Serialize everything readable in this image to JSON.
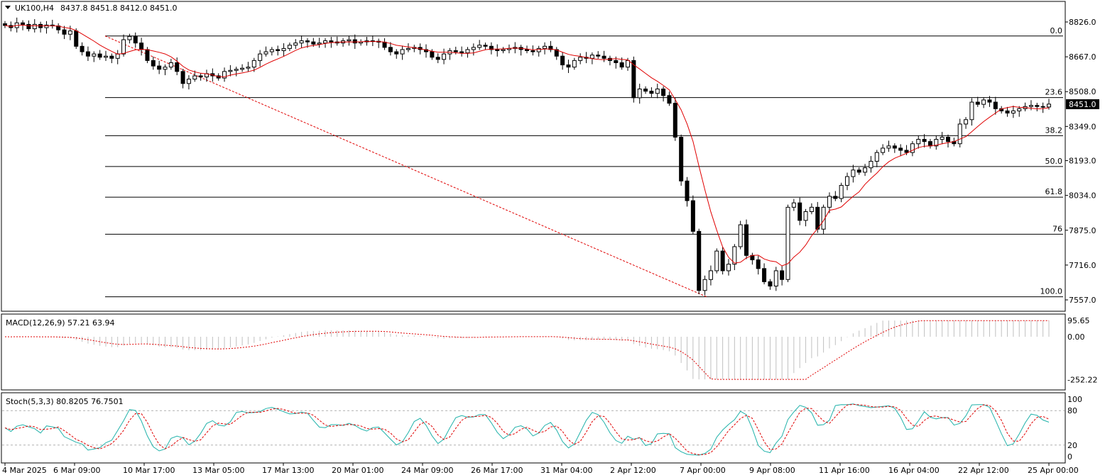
{
  "header": {
    "symbol": "UK100,H4",
    "ohlc": "8437.8 8451.8 8412.0 8451.0"
  },
  "price_axis": {
    "ticks": [
      8826.0,
      8667.0,
      8508.0,
      8349.0,
      8193.0,
      8034.0,
      7875.0,
      7716.0,
      7557.0
    ],
    "tick_labels": [
      "8826.0",
      "8667.0",
      "8508.0",
      "8349.0",
      "8193.0",
      "8034.0",
      "7875.0",
      "7716.0",
      "7557.0"
    ],
    "current_price_label": "8451.0",
    "range": [
      7521,
      8888
    ]
  },
  "time_axis": {
    "labels": [
      "4 Mar 2025",
      "6 Mar 09:00",
      "10 Mar 17:00",
      "13 Mar 05:00",
      "17 Mar 13:00",
      "20 Mar 01:00",
      "24 Mar 09:00",
      "26 Mar 17:00",
      "31 Mar 04:00",
      "2 Apr 12:00",
      "7 Apr 00:00",
      "9 Apr 08:00",
      "11 Apr 16:00",
      "16 Apr 04:00",
      "22 Apr 12:00",
      "25 Apr 00:00"
    ]
  },
  "fibonacci": {
    "levels": [
      {
        "label": "0.0",
        "price": 8762
      },
      {
        "label": "23.6",
        "price": 8481
      },
      {
        "label": "38.2",
        "price": 8307
      },
      {
        "label": "50.0",
        "price": 8166
      },
      {
        "label": "61.8",
        "price": 8026
      },
      {
        "label": "76",
        "price": 7857
      },
      {
        "label": "100.0",
        "price": 7571
      }
    ]
  },
  "macd_panel": {
    "label": "MACD(12,26,9) 57.21 63.94",
    "tick_labels": [
      "95.65",
      "0.00",
      "-252.22"
    ],
    "range": [
      -252.22,
      95.65
    ]
  },
  "stoch_panel": {
    "label": "Stoch(5,3,3) 80.8205 76.7501",
    "tick_labels": [
      "100",
      "80",
      "20",
      "0"
    ]
  },
  "colors": {
    "up_candle": "#ffffff",
    "down_candle": "#000000",
    "moving_average": "#e00000",
    "fib_trend": "#e00000",
    "fib_level": "#000000",
    "macd_hist": "#c0c0c0",
    "macd_signal": "#e00000",
    "stoch_main": "#20b2aa",
    "stoch_signal": "#e00000"
  },
  "chart_data": {
    "type": "candlestick",
    "symbol": "UK100",
    "timeframe": "H4",
    "candles_close": [
      8810,
      8800,
      8822,
      8815,
      8795,
      8815,
      8800,
      8812,
      8808,
      8790,
      8770,
      8785,
      8715,
      8690,
      8670,
      8680,
      8665,
      8670,
      8660,
      8680,
      8745,
      8760,
      8730,
      8700,
      8650,
      8625,
      8610,
      8620,
      8640,
      8600,
      8545,
      8565,
      8580,
      8575,
      8590,
      8580,
      8570,
      8600,
      8605,
      8610,
      8615,
      8620,
      8650,
      8680,
      8690,
      8700,
      8695,
      8705,
      8720,
      8730,
      8740,
      8735,
      8725,
      8730,
      8740,
      8735,
      8730,
      8740,
      8745,
      8730,
      8735,
      8740,
      8738,
      8734,
      8710,
      8690,
      8680,
      8700,
      8705,
      8710,
      8700,
      8690,
      8665,
      8655,
      8680,
      8695,
      8690,
      8685,
      8700,
      8710,
      8720,
      8715,
      8700,
      8695,
      8700,
      8705,
      8710,
      8700,
      8695,
      8690,
      8705,
      8715,
      8700,
      8670,
      8630,
      8620,
      8650,
      8665,
      8660,
      8675,
      8670,
      8660,
      8650,
      8640,
      8620,
      8650,
      8480,
      8520,
      8510,
      8500,
      8520,
      8490,
      8455,
      8300,
      8100,
      8010,
      7870,
      7600,
      7650,
      7690,
      7780,
      7690,
      7720,
      7800,
      7900,
      7760,
      7740,
      7700,
      7640,
      7620,
      7690,
      7650,
      7980,
      8000,
      7920,
      7960,
      7980,
      7880,
      7980,
      8030,
      8020,
      8080,
      8120,
      8150,
      8140,
      8160,
      8190,
      8230,
      8250,
      8260,
      8250,
      8240,
      8230,
      8270,
      8290,
      8280,
      8260,
      8290,
      8300,
      8280,
      8270,
      8360,
      8380,
      8460,
      8450,
      8470,
      8460,
      8430,
      8420,
      8410,
      8420,
      8430,
      8440,
      8445,
      8440,
      8437.8,
      8451.0
    ],
    "last_candle": {
      "open": 8437.8,
      "high": 8451.8,
      "low": 8412.0,
      "close": 8451.0
    },
    "moving_average": "red MA overlay on price",
    "ylim": [
      7521,
      8888
    ]
  }
}
